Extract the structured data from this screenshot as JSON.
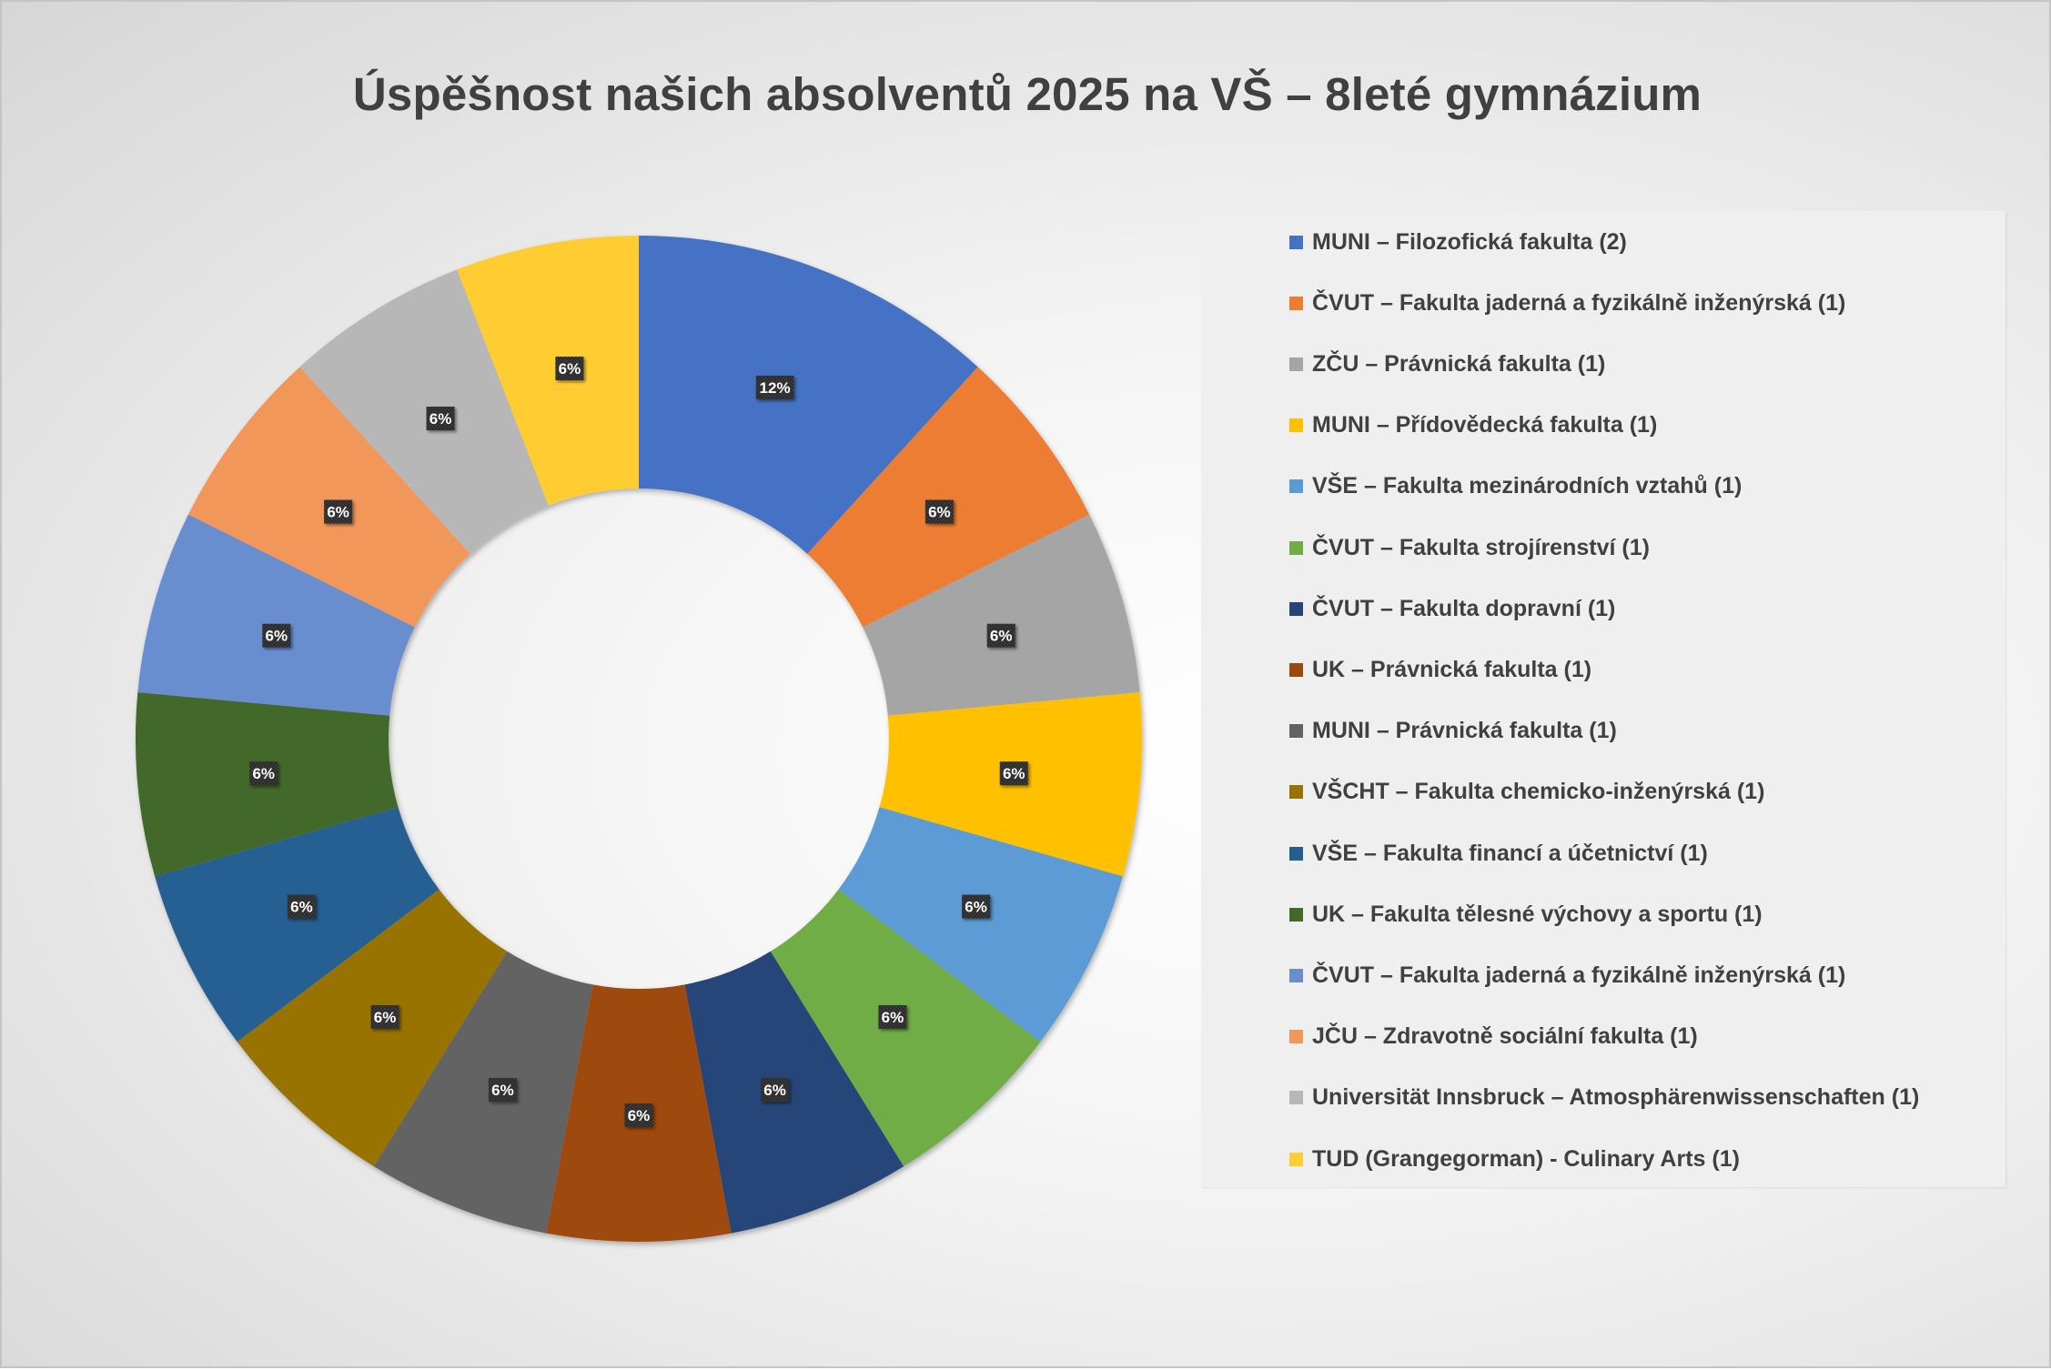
{
  "chart_data": {
    "type": "pie",
    "variant": "donut",
    "title": "Úspěšnost našich absolventů 2025 na VŠ – 8leté gymnázium",
    "legend_position": "right",
    "slices": [
      {
        "label": "MUNI – Filozofická fakulta (2)",
        "value": 2,
        "percent_label": "12%",
        "color": "#4472C4"
      },
      {
        "label": "ČVUT – Fakulta jaderná a fyzikálně inženýrská  (1)",
        "value": 1,
        "percent_label": "6%",
        "color": "#ED7D31"
      },
      {
        "label": "ZČU – Právnická fakulta  (1)",
        "value": 1,
        "percent_label": "6%",
        "color": "#A5A5A5"
      },
      {
        "label": "MUNI – Přídovědecká fakulta (1)",
        "value": 1,
        "percent_label": "6%",
        "color": "#FFC000"
      },
      {
        "label": "VŠE – Fakulta mezinárodních vztahů (1)",
        "value": 1,
        "percent_label": "6%",
        "color": "#5B9BD5"
      },
      {
        "label": "ČVUT – Fakulta strojírenství (1)",
        "value": 1,
        "percent_label": "6%",
        "color": "#70AD47"
      },
      {
        "label": "ČVUT – Fakulta dopravní (1)",
        "value": 1,
        "percent_label": "6%",
        "color": "#264478"
      },
      {
        "label": "UK – Právnická fakulta (1)",
        "value": 1,
        "percent_label": "6%",
        "color": "#9E480E"
      },
      {
        "label": "MUNI – Právnická fakulta (1)",
        "value": 1,
        "percent_label": "6%",
        "color": "#636363"
      },
      {
        "label": "VŠCHT – Fakulta chemicko-inženýrská (1)",
        "value": 1,
        "percent_label": "6%",
        "color": "#997300"
      },
      {
        "label": "VŠE – Fakulta financí a účetnictví (1)",
        "value": 1,
        "percent_label": "6%",
        "color": "#255E91"
      },
      {
        "label": "UK – Fakulta tělesné výchovy a sportu (1)",
        "value": 1,
        "percent_label": "6%",
        "color": "#43682B"
      },
      {
        "label": "ČVUT – Fakulta jaderná a fyzikálně inženýrská  (1)",
        "value": 1,
        "percent_label": "6%",
        "color": "#698ED0"
      },
      {
        "label": "JČU – Zdravotně sociální fakulta  (1)",
        "value": 1,
        "percent_label": "6%",
        "color": "#F1975A"
      },
      {
        "label": "Universität Innsbruck – Atmosphärenwissenschaften (1)",
        "value": 1,
        "percent_label": "6%",
        "color": "#B7B7B7"
      },
      {
        "label": "TUD (Grangegorman) - Culinary Arts (1)",
        "value": 1,
        "percent_label": "6%",
        "color": "#FFCD33"
      }
    ]
  }
}
